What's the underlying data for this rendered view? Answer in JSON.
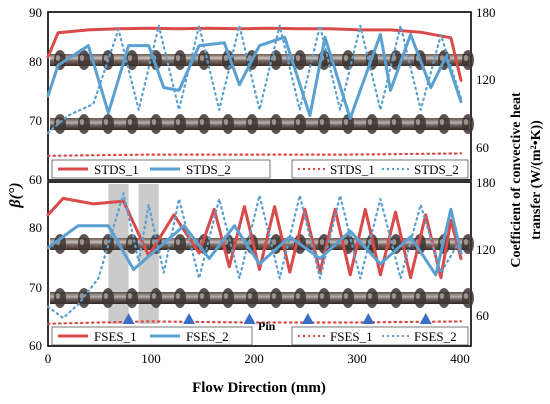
{
  "chart_data": [
    {
      "type": "line",
      "panel": "top",
      "xlim": [
        0,
        410
      ],
      "ylim_left": [
        60,
        90
      ],
      "ylim_right": [
        40,
        180
      ],
      "left_ticks": [
        "90",
        "80",
        "70",
        "60"
      ],
      "right_ticks": [
        "180",
        "120",
        "60"
      ],
      "legend_left": [
        "STDS_1",
        "STDS_2"
      ],
      "legend_right": [
        "STDS_1",
        "STDS_2"
      ],
      "colors": {
        "red": "#d94a4a",
        "blue": "#5aa0d0"
      },
      "series": [
        {
          "name": "STDS_1",
          "axis": "left",
          "style": "solid",
          "color": "red",
          "x": [
            0,
            10,
            40,
            70,
            100,
            130,
            160,
            190,
            220,
            250,
            280,
            310,
            340,
            370,
            400,
            410
          ],
          "y": [
            82,
            86.3,
            86.8,
            87.0,
            87.1,
            87.0,
            87.1,
            87.0,
            87.1,
            87.0,
            87.0,
            86.8,
            86.8,
            86.4,
            85.4,
            77.8
          ]
        },
        {
          "name": "STDS_2",
          "axis": "left",
          "style": "solid",
          "color": "blue",
          "x": [
            0,
            10,
            40,
            60,
            80,
            100,
            115,
            130,
            150,
            175,
            190,
            210,
            235,
            260,
            275,
            300,
            330,
            340,
            360,
            380,
            395,
            410
          ],
          "y": [
            75,
            80.5,
            84.0,
            72.0,
            84.0,
            84.0,
            76.5,
            76.0,
            84.0,
            84.5,
            77.0,
            84.0,
            85.5,
            71.5,
            85.5,
            71.0,
            86.0,
            76.0,
            86.0,
            76.5,
            82.0,
            74.0
          ]
        },
        {
          "name": "STDS_1",
          "axis": "right",
          "style": "dotted",
          "color": "red",
          "x": [
            0,
            100,
            200,
            300,
            410
          ],
          "y": [
            55,
            56,
            56,
            56,
            57
          ]
        },
        {
          "name": "STDS_2",
          "axis": "right",
          "style": "dotted",
          "color": "blue",
          "x": [
            0,
            20,
            45,
            70,
            90,
            110,
            130,
            150,
            170,
            190,
            210,
            230,
            250,
            270,
            290,
            310,
            330,
            350,
            370,
            390,
            410
          ],
          "y": [
            75,
            90,
            100,
            165,
            95,
            168,
            95,
            168,
            95,
            168,
            95,
            168,
            95,
            168,
            95,
            168,
            95,
            168,
            95,
            160,
            105
          ]
        }
      ]
    },
    {
      "type": "line",
      "panel": "bottom",
      "xlim": [
        0,
        410
      ],
      "ylim_left": [
        60,
        90
      ],
      "ylim_right": [
        40,
        180
      ],
      "left_ticks": [
        "80",
        "70",
        "60"
      ],
      "right_ticks": [
        "180",
        "120",
        "60"
      ],
      "x_ticks": [
        "0",
        "100",
        "200",
        "300",
        "400"
      ],
      "legend_left": [
        "FSES_1",
        "FSES_2"
      ],
      "legend_right": [
        "FSES_1",
        "FSES_2"
      ],
      "annotation": "Pin",
      "pin_x": [
        80,
        140,
        200,
        258,
        318,
        375
      ],
      "highlight_x": [
        [
          60,
          80
        ],
        [
          90,
          110
        ]
      ],
      "series": [
        {
          "name": "FSES_1",
          "axis": "left",
          "style": "solid",
          "color": "red",
          "x": [
            0,
            15,
            45,
            75,
            100,
            125,
            150,
            165,
            180,
            195,
            210,
            225,
            240,
            255,
            270,
            285,
            300,
            315,
            330,
            345,
            360,
            375,
            390,
            400,
            410
          ],
          "y": [
            84,
            87.0,
            86.0,
            86.5,
            76.5,
            84.0,
            77.0,
            85.0,
            74.5,
            85.5,
            74.0,
            85.5,
            73.5,
            85.0,
            73.5,
            85.0,
            73.0,
            85.0,
            73.0,
            84.5,
            72.5,
            84.0,
            72.5,
            83.0,
            76.0
          ]
        },
        {
          "name": "FSES_2",
          "axis": "left",
          "style": "solid",
          "color": "blue",
          "x": [
            0,
            30,
            60,
            85,
            110,
            135,
            160,
            185,
            210,
            240,
            270,
            300,
            330,
            360,
            385,
            400,
            410
          ],
          "y": [
            78,
            82,
            82,
            74,
            78,
            82,
            76,
            82,
            75,
            80,
            76,
            81,
            75,
            80,
            73,
            85,
            77
          ]
        },
        {
          "name": "FSES_1",
          "axis": "right",
          "style": "dotted",
          "color": "red",
          "x": [
            0,
            100,
            200,
            300,
            410
          ],
          "y": [
            55,
            57,
            56,
            56,
            57
          ]
        },
        {
          "name": "FSES_2",
          "axis": "right",
          "style": "dotted",
          "color": "blue",
          "x": [
            0,
            15,
            30,
            50,
            75,
            90,
            100,
            115,
            130,
            150,
            170,
            190,
            210,
            230,
            250,
            270,
            290,
            310,
            330,
            350,
            370,
            390,
            410
          ],
          "y": [
            70,
            60,
            72,
            95,
            170,
            110,
            160,
            100,
            165,
            95,
            165,
            95,
            168,
            95,
            168,
            95,
            168,
            95,
            165,
            95,
            160,
            100,
            130
          ]
        }
      ]
    }
  ],
  "axes": {
    "y_left_label": "β(°)",
    "y_right_label_line1": "Coefficient of convective heat",
    "y_right_label_line2": "transfer  (W/(m²•K))",
    "x_label": "Flow Direction (mm)"
  }
}
